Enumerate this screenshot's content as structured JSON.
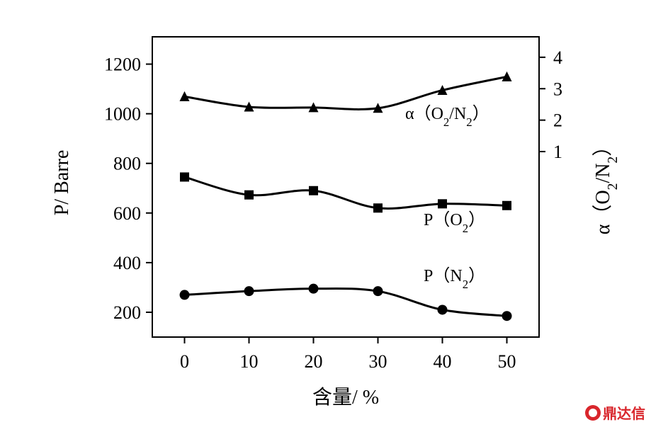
{
  "chart_data": {
    "type": "line",
    "xlabel": "含量/ %",
    "ylabel": "P/ Barre",
    "y2label": "α（O2/N2）",
    "x_ticks": [
      0,
      10,
      20,
      30,
      40,
      50
    ],
    "y_ticks": [
      200,
      400,
      600,
      800,
      1000,
      1200
    ],
    "y2_ticks": [
      1,
      2,
      3,
      4
    ],
    "xlim": [
      -5,
      55
    ],
    "ylim": [
      100,
      1310
    ],
    "y2lim": [
      -4.9,
      4.65
    ],
    "series": [
      {
        "name": "α（O2/N2）",
        "axis": "right",
        "marker": "triangle",
        "x": [
          0,
          10,
          20,
          30,
          40,
          50
        ],
        "values": [
          2.75,
          2.42,
          2.4,
          2.38,
          2.95,
          3.38
        ]
      },
      {
        "name": "P（O2）",
        "axis": "left",
        "marker": "square",
        "x": [
          0,
          10,
          20,
          30,
          40,
          50
        ],
        "values": [
          745,
          673,
          690,
          620,
          637,
          630
        ]
      },
      {
        "name": "P（N2）",
        "axis": "left",
        "marker": "circle",
        "x": [
          0,
          10,
          20,
          30,
          40,
          50
        ],
        "values": [
          270,
          285,
          295,
          285,
          210,
          185
        ]
      }
    ]
  },
  "watermark": {
    "text": "鼎达信",
    "icon": "brand-logo-icon",
    "color": "#d9262c"
  }
}
